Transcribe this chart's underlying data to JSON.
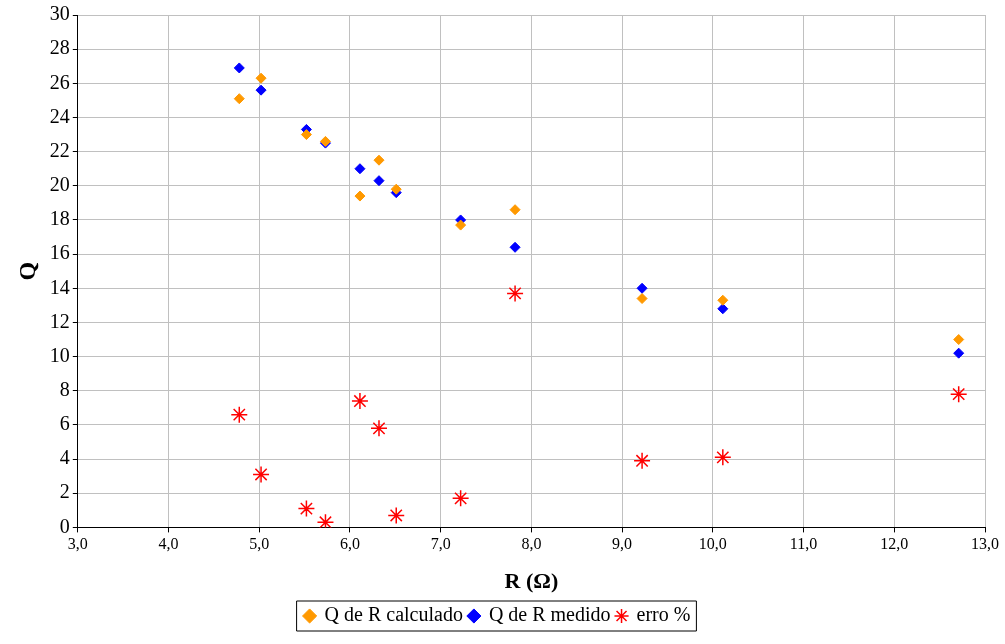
{
  "chart_data": {
    "type": "scatter",
    "xlabel": "R (Ω)",
    "ylabel": "Q",
    "x": [
      4.78,
      5.02,
      5.52,
      5.73,
      6.11,
      6.32,
      6.51,
      7.22,
      7.82,
      9.22,
      10.11,
      12.71
    ],
    "series": [
      {
        "name": "Q de R calculado",
        "color": "#ff9900",
        "marker": "diamond",
        "values": [
          25.1,
          26.3,
          23.0,
          22.6,
          19.4,
          21.5,
          19.8,
          17.7,
          18.6,
          13.4,
          13.3,
          11.0
        ]
      },
      {
        "name": "Q de R medido",
        "color": "#0000ff",
        "marker": "diamond",
        "values": [
          26.9,
          25.6,
          23.3,
          22.5,
          21.0,
          20.3,
          19.6,
          18.0,
          16.4,
          14.0,
          12.8,
          10.2
        ]
      },
      {
        "name": "erro %",
        "color": "#ff0000",
        "marker": "cross",
        "values": [
          6.6,
          3.1,
          1.1,
          0.3,
          7.4,
          5.8,
          0.7,
          1.7,
          13.7,
          3.9,
          4.1,
          7.8
        ]
      }
    ],
    "xlim": [
      3,
      13
    ],
    "xticks": [
      {
        "value": 3,
        "label": "3,0"
      },
      {
        "value": 4,
        "label": "4,0"
      },
      {
        "value": 5,
        "label": "5,0"
      },
      {
        "value": 6,
        "label": "6,0"
      },
      {
        "value": 7,
        "label": "7,0"
      },
      {
        "value": 8,
        "label": "8,0"
      },
      {
        "value": 9,
        "label": "9,0"
      },
      {
        "value": 10,
        "label": "10,0"
      },
      {
        "value": 11,
        "label": "11,0"
      },
      {
        "value": 12,
        "label": "12,0"
      },
      {
        "value": 13,
        "label": "13,0"
      }
    ],
    "ylim": [
      0,
      30
    ],
    "yticks": [
      0,
      2,
      4,
      6,
      8,
      10,
      12,
      14,
      16,
      18,
      20,
      22,
      24,
      26,
      28,
      30
    ],
    "grid": true,
    "legend": "bottom"
  }
}
